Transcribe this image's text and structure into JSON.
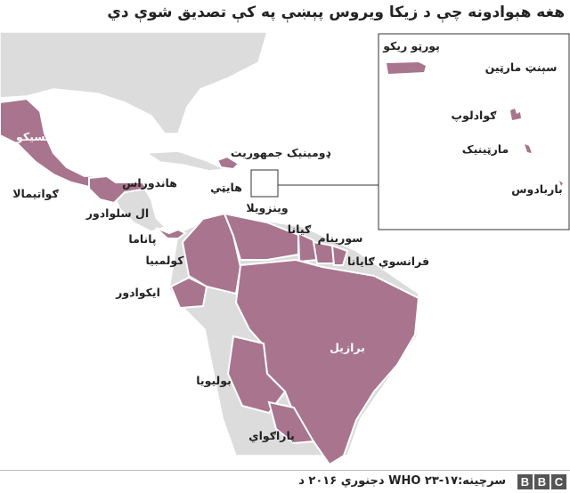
{
  "title": "هغه هېوادونه چې د زيکا ويروس پېښې په کې تصديق شوې دي",
  "colors": {
    "affected": "#a8748e",
    "land": "#dcdcdc",
    "sea": "#ffffff",
    "border": "#ffffff"
  },
  "labels": {
    "mexico": "مکسيکو",
    "guatemala": "ګواتيمالا",
    "honduras": "هاندوراس",
    "el_salvador": "ال سلوادور",
    "dominican_republic": "ډومينيک جمهوريت",
    "haiti": "هايټي",
    "venezuela": "وينزويلا",
    "guyana": "ګيانا",
    "suriname": "سورينام",
    "french_guiana": "فرانسوي ګايانا",
    "panama": "پاناما",
    "colombia": "کولمبيا",
    "ecuador": "ايکوادور",
    "brazil": "برازيل",
    "bolivia": "بوليويا",
    "paraguay": "پاراګواي"
  },
  "inset": {
    "puerto_rico": "پورټو ريکو",
    "saint_martin": "سېنټ مارټين",
    "guadeloupe": "ګوادلوپ",
    "martinique": "مارټينيک",
    "barbados": "باربادوس"
  },
  "footer": {
    "source": "سرچينه:WHO ۲۳-۱۷ دجنوري ۲۰۱۶ د",
    "logo": "BBC"
  }
}
